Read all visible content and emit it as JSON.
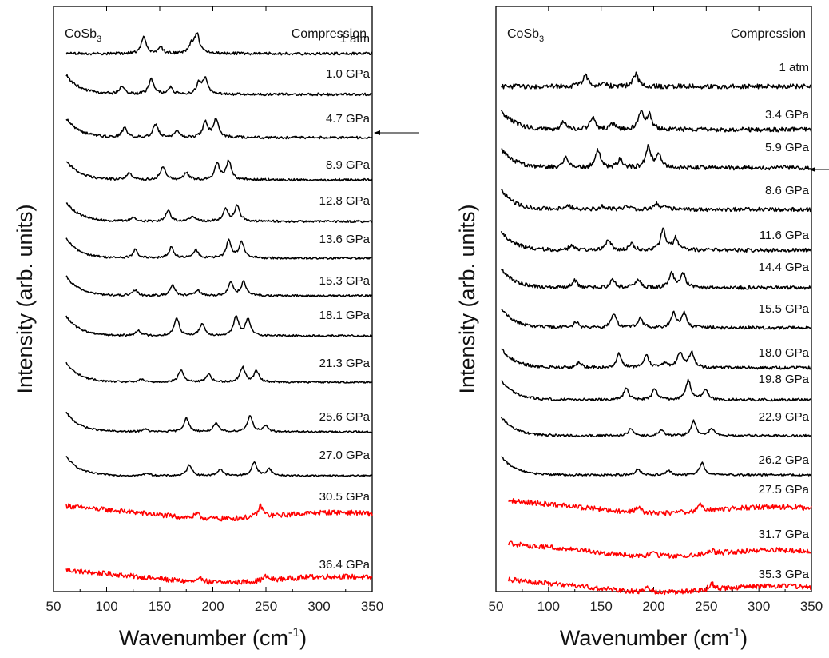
{
  "chart_data": [
    {
      "type": "line",
      "panel": "left",
      "sample_label": "CoSb",
      "sample_subscript": "3",
      "mode_label": "Compression",
      "xlabel_main": "Wavenumber (cm",
      "xlabel_sup": "-1",
      "xlabel_close": ")",
      "ylabel": "Intensity (arb. units)",
      "xlim": [
        50,
        350
      ],
      "xticks": [
        "50",
        "100",
        "150",
        "200",
        "250",
        "300",
        "350"
      ],
      "y_tick_labels": false,
      "colors": {
        "ambient_phase": "#000000",
        "high_pressure_phase": "#ff0000"
      },
      "arrow_marker": "right side, pointing at the 30.5 GPa trace",
      "series": [
        {
          "name": "36.4 GPa",
          "color": "#ff0000",
          "peaks": [
            [
              190,
              0.3
            ],
            [
              250,
              0.3
            ]
          ]
        },
        {
          "name": "30.5 GPa",
          "color": "#ff0000",
          "peaks": [
            [
              185,
              0.3
            ],
            [
              245,
              0.8
            ]
          ]
        },
        {
          "name": "27.0 GPa",
          "color": "#000000",
          "peaks": [
            [
              138,
              0.2
            ],
            [
              178,
              0.8
            ],
            [
              207,
              0.5
            ],
            [
              239,
              1.0
            ],
            [
              253,
              0.5
            ]
          ]
        },
        {
          "name": "25.6 GPa",
          "color": "#000000",
          "peaks": [
            [
              136,
              0.2
            ],
            [
              175,
              1.0
            ],
            [
              203,
              0.6
            ],
            [
              235,
              1.2
            ],
            [
              250,
              0.4
            ]
          ]
        },
        {
          "name": "21.3 GPa",
          "color": "#000000",
          "peaks": [
            [
              133,
              0.2
            ],
            [
              170,
              0.9
            ],
            [
              196,
              0.6
            ],
            [
              228,
              1.1
            ],
            [
              241,
              0.8
            ]
          ]
        },
        {
          "name": "18.1 GPa",
          "color": "#000000",
          "peaks": [
            [
              130,
              0.4
            ],
            [
              166,
              1.3
            ],
            [
              190,
              0.9
            ],
            [
              222,
              1.4
            ],
            [
              233,
              1.2
            ]
          ]
        },
        {
          "name": "15.3 GPa",
          "color": "#000000",
          "peaks": [
            [
              127,
              0.4
            ],
            [
              162,
              0.8
            ],
            [
              186,
              0.4
            ],
            [
              217,
              1.0
            ],
            [
              229,
              1.0
            ]
          ]
        },
        {
          "name": "13.6 GPa",
          "color": "#000000",
          "peaks": [
            [
              127,
              0.6
            ],
            [
              161,
              0.8
            ],
            [
              184,
              0.6
            ],
            [
              215,
              1.3
            ],
            [
              227,
              1.2
            ]
          ]
        },
        {
          "name": "12.8 GPa",
          "color": "#000000",
          "peaks": [
            [
              125,
              0.3
            ],
            [
              158,
              0.8
            ],
            [
              181,
              0.4
            ],
            [
              212,
              0.9
            ],
            [
              223,
              1.2
            ]
          ]
        },
        {
          "name": "8.9 GPa",
          "color": "#000000",
          "peaks": [
            [
              121,
              0.5
            ],
            [
              153,
              1.0
            ],
            [
              175,
              0.5
            ],
            [
              204,
              1.2
            ],
            [
              215,
              1.4
            ]
          ]
        },
        {
          "name": "4.7 GPa",
          "color": "#000000",
          "peaks": [
            [
              117,
              0.7
            ],
            [
              146,
              1.0
            ],
            [
              166,
              0.5
            ],
            [
              193,
              1.1
            ],
            [
              203,
              1.4
            ]
          ]
        },
        {
          "name": "1.0 GPa",
          "color": "#000000",
          "peaks": [
            [
              115,
              0.6
            ],
            [
              142,
              1.1
            ],
            [
              160,
              0.5
            ],
            [
              187,
              0.8
            ],
            [
              193,
              1.1
            ]
          ]
        },
        {
          "name": "1 atm",
          "color": "#000000",
          "peaks": [
            [
              135,
              1.2
            ],
            [
              151,
              0.4
            ],
            [
              180,
              0.6
            ],
            [
              185,
              1.4
            ]
          ]
        }
      ]
    },
    {
      "type": "line",
      "panel": "right",
      "sample_label": "CoSb",
      "sample_subscript": "3",
      "mode_label": "Compression",
      "xlabel_main": "Wavenumber (cm",
      "xlabel_sup": "-1",
      "xlabel_close": ")",
      "ylabel": "Intensity (arb. units)",
      "xlim": [
        50,
        350
      ],
      "xticks": [
        "50",
        "100",
        "150",
        "200",
        "250",
        "300",
        "350"
      ],
      "y_tick_labels": false,
      "colors": {
        "ambient_phase": "#000000",
        "high_pressure_phase": "#ff0000"
      },
      "arrow_marker": "right side, pointing at the 27.5 GPa trace",
      "series": [
        {
          "name": "35.3 GPa",
          "color": "#ff0000",
          "peaks": [
            [
              195,
              0.4
            ],
            [
              255,
              0.5
            ]
          ]
        },
        {
          "name": "31.7 GPa",
          "color": "#ff0000",
          "peaks": [
            [
              200,
              0.3
            ],
            [
              255,
              0.3
            ]
          ]
        },
        {
          "name": "27.5 GPa",
          "color": "#ff0000",
          "peaks": [
            [
              185,
              0.5
            ],
            [
              245,
              0.6
            ]
          ]
        },
        {
          "name": "26.2 GPa",
          "color": "#000000",
          "peaks": [
            [
              185,
              0.5
            ],
            [
              214,
              0.4
            ],
            [
              246,
              1.0
            ]
          ]
        },
        {
          "name": "22.9 GPa",
          "color": "#000000",
          "peaks": [
            [
              178,
              0.6
            ],
            [
              207,
              0.5
            ],
            [
              238,
              1.2
            ],
            [
              255,
              0.6
            ]
          ]
        },
        {
          "name": "19.8 GPa",
          "color": "#000000",
          "peaks": [
            [
              174,
              1.0
            ],
            [
              201,
              0.9
            ],
            [
              233,
              1.6
            ],
            [
              249,
              0.9
            ]
          ]
        },
        {
          "name": "18.0 GPa",
          "color": "#000000",
          "peaks": [
            [
              129,
              0.5
            ],
            [
              167,
              1.2
            ],
            [
              193,
              1.0
            ],
            [
              211,
              0.4
            ],
            [
              225,
              1.3
            ],
            [
              236,
              1.3
            ]
          ]
        },
        {
          "name": "15.5 GPa",
          "color": "#000000",
          "peaks": [
            [
              126,
              0.5
            ],
            [
              162,
              1.2
            ],
            [
              187,
              0.8
            ],
            [
              219,
              1.2
            ],
            [
              229,
              1.2
            ]
          ]
        },
        {
          "name": "14.4 GPa",
          "color": "#000000",
          "peaks": [
            [
              125,
              0.6
            ],
            [
              161,
              0.7
            ],
            [
              185,
              0.7
            ],
            [
              217,
              1.2
            ],
            [
              228,
              1.2
            ]
          ]
        },
        {
          "name": "11.6 GPa",
          "color": "#000000",
          "peaks": [
            [
              122,
              0.4
            ],
            [
              157,
              0.9
            ],
            [
              179,
              0.5
            ],
            [
              209,
              1.7
            ],
            [
              221,
              1.0
            ]
          ]
        },
        {
          "name": "8.6 GPa",
          "color": "#000000",
          "peaks": [
            [
              119,
              0.3
            ],
            [
              151,
              0.3
            ],
            [
              174,
              0.2
            ],
            [
              202,
              0.5
            ],
            [
              212,
              0.3
            ]
          ]
        },
        {
          "name": "5.9 GPa",
          "color": "#000000",
          "peaks": [
            [
              116,
              0.9
            ],
            [
              147,
              1.5
            ],
            [
              168,
              0.7
            ],
            [
              195,
              1.8
            ],
            [
              205,
              1.0
            ]
          ]
        },
        {
          "name": "3.4 GPa",
          "color": "#000000",
          "peaks": [
            [
              114,
              0.6
            ],
            [
              142,
              1.0
            ],
            [
              161,
              0.5
            ],
            [
              188,
              1.4
            ],
            [
              196,
              1.2
            ]
          ]
        },
        {
          "name": "1 atm",
          "color": "#000000",
          "peaks": [
            [
              135,
              1.0
            ],
            [
              152,
              0.2
            ],
            [
              183,
              1.0
            ]
          ]
        }
      ]
    }
  ]
}
